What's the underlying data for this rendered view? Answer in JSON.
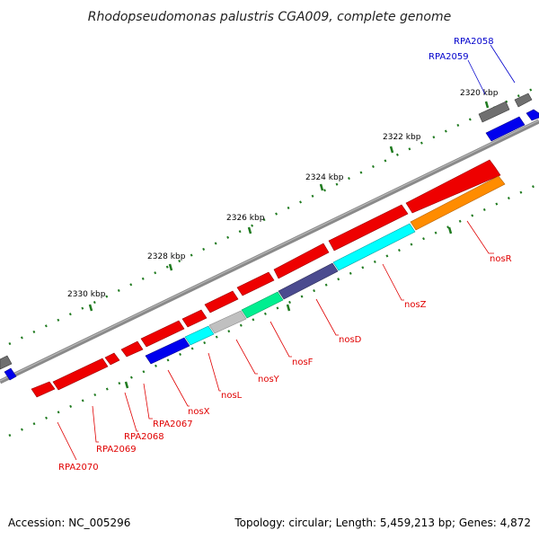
{
  "title": "Rhodopseudomonas palustris CGA009, complete genome",
  "accession": "Accession: NC_005296",
  "topology": "Topology: circular; Length: 5,459,213 bp; Genes: 4,872",
  "colors": {
    "backbone": "#8a8a8a",
    "tick": "#1f7a1f",
    "label_red": "#e00000",
    "label_blue": "#0000cc"
  },
  "ticks": [
    {
      "label": "2320 kbp"
    },
    {
      "label": "2322 kbp"
    },
    {
      "label": "2324 kbp"
    },
    {
      "label": "2326 kbp"
    },
    {
      "label": "2328 kbp"
    },
    {
      "label": "2330 kbp"
    }
  ],
  "gene_labels": [
    {
      "name": "RPA2058",
      "color": "#0000cc"
    },
    {
      "name": "RPA2059",
      "color": "#0000cc"
    },
    {
      "name": "nosR",
      "color": "#e00000"
    },
    {
      "name": "nosZ",
      "color": "#e00000"
    },
    {
      "name": "nosD",
      "color": "#e00000"
    },
    {
      "name": "nosF",
      "color": "#e00000"
    },
    {
      "name": "nosY",
      "color": "#e00000"
    },
    {
      "name": "nosL",
      "color": "#e00000"
    },
    {
      "name": "nosX",
      "color": "#e00000"
    },
    {
      "name": "RPA2067",
      "color": "#e00000"
    },
    {
      "name": "RPA2068",
      "color": "#e00000"
    },
    {
      "name": "RPA2069",
      "color": "#e00000"
    },
    {
      "name": "RPA2070",
      "color": "#e00000"
    }
  ],
  "features": [
    {
      "name": "RPA2058",
      "track": "top",
      "color": "#6f6f6f"
    },
    {
      "name": "RPA2059",
      "track": "top",
      "color": "#6f6f6f"
    },
    {
      "name": "nosR",
      "track": "top",
      "color": "#ee0000"
    },
    {
      "name": "nosZ",
      "track": "top",
      "color": "#ee0000"
    },
    {
      "name": "nosD",
      "track": "top",
      "color": "#ee0000"
    },
    {
      "name": "nosF",
      "track": "top",
      "color": "#ee0000"
    },
    {
      "name": "nosY",
      "track": "top",
      "color": "#ee0000"
    },
    {
      "name": "nosL",
      "track": "top",
      "color": "#ee0000"
    },
    {
      "name": "nosX",
      "track": "top",
      "color": "#ee0000"
    },
    {
      "name": "RPA2067",
      "track": "top",
      "color": "#ee0000"
    },
    {
      "name": "RPA2068",
      "track": "top",
      "color": "#ee0000"
    },
    {
      "name": "RPA2069",
      "track": "top",
      "color": "#ee0000"
    },
    {
      "name": "RPA2070",
      "track": "top",
      "color": "#ee0000"
    },
    {
      "name": "RPA2058",
      "track": "cog",
      "color": "#0000ee"
    },
    {
      "name": "nosR",
      "track": "cog",
      "color": "#ff8c00"
    },
    {
      "name": "nosZ",
      "track": "cog",
      "color": "#00ffff"
    },
    {
      "name": "nosD",
      "track": "cog",
      "color": "#4b4b8f"
    },
    {
      "name": "nosF",
      "track": "cog",
      "color": "#00ee90"
    },
    {
      "name": "nosY",
      "track": "cog",
      "color": "#c0c0c0"
    },
    {
      "name": "nosL",
      "track": "cog",
      "color": "#00ffff"
    },
    {
      "name": "nosX",
      "track": "cog",
      "color": "#0000ee"
    }
  ]
}
